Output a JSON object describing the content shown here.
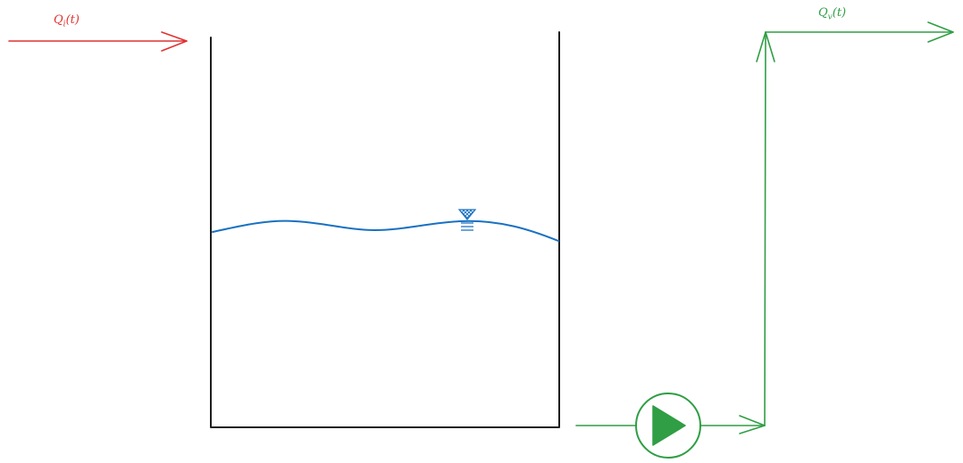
{
  "colors": {
    "inflow": "#e03131",
    "outflow": "#2f9e44",
    "water": "#1971c2",
    "tank": "#1e1e1e",
    "background": "#ffffff"
  },
  "labels": {
    "inflow": "Q_i(t)",
    "outflow": "Q_v(t)"
  },
  "icons": {
    "water_level": "water-level-indicator-icon",
    "pump": "pump-icon"
  }
}
